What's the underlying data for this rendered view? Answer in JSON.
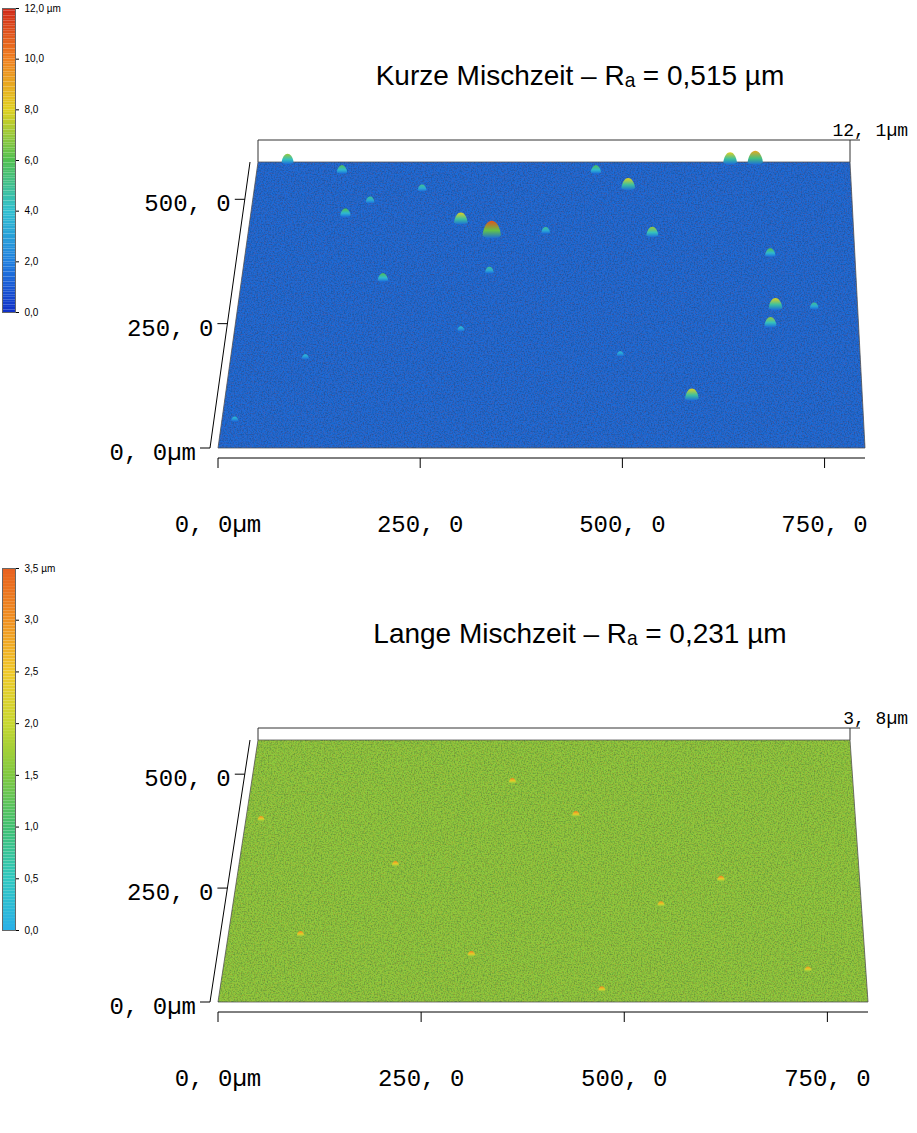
{
  "chart_data": [
    {
      "type": "surface",
      "title": "Kurze Mischzeit – Rₐ = 0,515 µm",
      "xlim": [
        0,
        800
      ],
      "xticks": [
        {
          "value": 0,
          "label": "0, 0µm"
        },
        {
          "value": 250,
          "label": "250, 0"
        },
        {
          "value": 500,
          "label": "500, 0"
        },
        {
          "value": 750,
          "label": "750, 0"
        }
      ],
      "ylim": [
        0,
        575
      ],
      "yticks": [
        {
          "value": 0,
          "label": "0, 0µm"
        },
        {
          "value": 250,
          "label": "250, 0"
        },
        {
          "value": 500,
          "label": "500, 0"
        }
      ],
      "zlim": [
        0,
        12.1
      ],
      "zticks": [
        {
          "value": 12.1,
          "label": "12, 1µm"
        }
      ],
      "base_level": 1.5,
      "peaks": {
        "x": [
          40,
          638,
          672,
          115,
          457,
          157,
          501,
          225,
          126,
          280,
          322,
          534,
          393,
          689,
          322,
          184,
          694,
          687,
          744,
          290,
          495,
          95,
          586,
          16
        ],
        "y": [
          575,
          575,
          575,
          555,
          555,
          495,
          523,
          519,
          468,
          454,
          428,
          428,
          434,
          388,
          354,
          338,
          282,
          247,
          282,
          237,
          187,
          181,
          100,
          56
        ],
        "z": [
          7,
          8,
          9,
          6,
          6,
          5,
          8,
          5,
          6,
          8,
          11,
          7,
          5,
          6,
          5,
          6,
          8,
          7,
          5,
          4,
          4,
          4,
          8,
          4
        ]
      },
      "colorbar": {
        "range": [
          0,
          12
        ],
        "ticks": [
          {
            "value": 12,
            "label": "12,0 µm"
          },
          {
            "value": 10,
            "label": "10,0"
          },
          {
            "value": 8,
            "label": "8,0"
          },
          {
            "value": 6,
            "label": "6,0"
          },
          {
            "value": 4,
            "label": "4,0"
          },
          {
            "value": 2,
            "label": "2,0"
          },
          {
            "value": 0,
            "label": "0,0"
          }
        ],
        "colors": [
          "#1030c8",
          "#2080e0",
          "#30c0d0",
          "#50c050",
          "#e0d020",
          "#f08020",
          "#d02818"
        ]
      }
    },
    {
      "type": "surface",
      "title": "Lange Mischzeit – Rₐ = 0,231 µm",
      "xlim": [
        0,
        800
      ],
      "xticks": [
        {
          "value": 0,
          "label": "0, 0µm"
        },
        {
          "value": 250,
          "label": "250, 0"
        },
        {
          "value": 500,
          "label": "500, 0"
        },
        {
          "value": 750,
          "label": "750, 0"
        }
      ],
      "ylim": [
        0,
        575
      ],
      "yticks": [
        {
          "value": 0,
          "label": "0, 0µm"
        },
        {
          "value": 250,
          "label": "250, 0"
        },
        {
          "value": 500,
          "label": "500, 0"
        }
      ],
      "zlim": [
        0,
        3.8
      ],
      "zticks": [
        {
          "value": 3.8,
          "label": "3, 8µm"
        }
      ],
      "base_level": 1.6,
      "peaks": {
        "x": [
          347,
          433,
          20,
          202,
          622,
          545,
          91,
          308,
          728,
          472
        ],
        "y": [
          483,
          410,
          400,
          301,
          268,
          213,
          147,
          103,
          70,
          26
        ],
        "z": [
          3.1,
          3.2,
          3.0,
          3.1,
          3.2,
          3.0,
          3.1,
          3.2,
          3.0,
          3.1
        ]
      },
      "colorbar": {
        "range": [
          0,
          3.5
        ],
        "ticks": [
          {
            "value": 3.5,
            "label": "3,5 µm"
          },
          {
            "value": 3,
            "label": "3,0"
          },
          {
            "value": 2.5,
            "label": "2,5"
          },
          {
            "value": 2,
            "label": "2,0"
          },
          {
            "value": 1.5,
            "label": "1,5"
          },
          {
            "value": 1,
            "label": "1,0"
          },
          {
            "value": 0.5,
            "label": "0,5"
          },
          {
            "value": 0,
            "label": "0,0"
          }
        ],
        "colors": [
          "#2ab0e8",
          "#30c8c0",
          "#40c070",
          "#80c840",
          "#c8d830",
          "#f0c828",
          "#f09020",
          "#e86020"
        ]
      }
    }
  ]
}
